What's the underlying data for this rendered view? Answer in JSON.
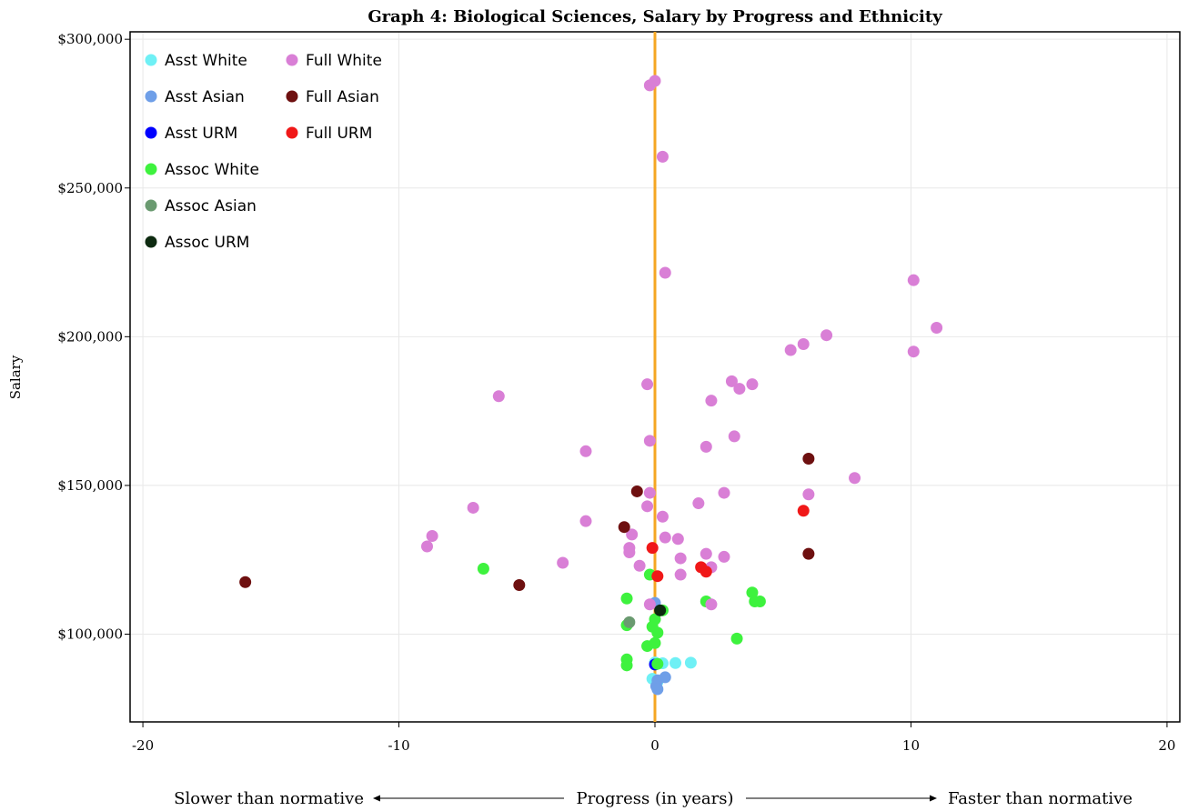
{
  "chart_data": {
    "type": "scatter",
    "title": "Graph 4: Biological Sciences, Salary by Progress and Ethnicity",
    "xlabel": "Progress (in years)",
    "ylabel": "Salary",
    "x_annotation_left": "Slower than normative",
    "x_annotation_right": "Faster than normative",
    "xlim": [
      -20.5,
      20.5
    ],
    "ylim": [
      70500,
      302500
    ],
    "x_ticks": [
      -20,
      -10,
      0,
      10,
      20
    ],
    "x_tick_labels": [
      "-20",
      "-10",
      "0",
      "10",
      "20"
    ],
    "y_ticks": [
      100000,
      150000,
      200000,
      250000,
      300000
    ],
    "y_tick_labels": [
      "$100,000",
      "$150,000",
      "$200,000",
      "$250,000",
      "$300,000"
    ],
    "grid": true,
    "reference_line_x": 0,
    "reference_line_color": "#f5a623",
    "legend_position": "top-left",
    "series": [
      {
        "name": "Asst White",
        "color": "#6ff0f5",
        "points": [
          [
            0.0,
            90500
          ],
          [
            0.3,
            90200
          ],
          [
            0.8,
            90300
          ],
          [
            1.4,
            90400
          ],
          [
            -0.1,
            85000
          ],
          [
            0.1,
            84000
          ]
        ]
      },
      {
        "name": "Asst Asian",
        "color": "#6f9fe8",
        "points": [
          [
            0.0,
            110500
          ],
          [
            0.4,
            85500
          ],
          [
            0.1,
            84500
          ],
          [
            0.05,
            82500
          ],
          [
            0.1,
            81500
          ]
        ]
      },
      {
        "name": "Asst URM",
        "color": "#0000ff",
        "points": [
          [
            0.0,
            89800
          ]
        ]
      },
      {
        "name": "Assoc White",
        "color": "#3ef23e",
        "points": [
          [
            -6.7,
            122000
          ],
          [
            -0.2,
            120000
          ],
          [
            -1.1,
            112000
          ],
          [
            2.0,
            111000
          ],
          [
            3.8,
            114000
          ],
          [
            3.9,
            111000
          ],
          [
            4.1,
            111000
          ],
          [
            -1.1,
            103000
          ],
          [
            -0.1,
            102500
          ],
          [
            0.0,
            105000
          ],
          [
            0.1,
            100500
          ],
          [
            0.3,
            108000
          ],
          [
            -0.3,
            96000
          ],
          [
            0.0,
            97000
          ],
          [
            3.2,
            98500
          ],
          [
            -1.1,
            91500
          ],
          [
            -1.1,
            89500
          ],
          [
            0.1,
            90000
          ]
        ]
      },
      {
        "name": "Assoc Asian",
        "color": "#6a9a70",
        "points": [
          [
            -1.0,
            104000
          ]
        ]
      },
      {
        "name": "Assoc URM",
        "color": "#0d2a10",
        "points": [
          [
            0.2,
            108000
          ]
        ]
      },
      {
        "name": "Full White",
        "color": "#d97fd6",
        "points": [
          [
            -0.2,
            284500
          ],
          [
            0.0,
            286000
          ],
          [
            0.3,
            260500
          ],
          [
            0.4,
            221500
          ],
          [
            10.1,
            219000
          ],
          [
            11.0,
            203000
          ],
          [
            10.1,
            195000
          ],
          [
            6.7,
            200500
          ],
          [
            5.8,
            197500
          ],
          [
            5.3,
            195500
          ],
          [
            3.0,
            185000
          ],
          [
            3.3,
            182500
          ],
          [
            3.8,
            184000
          ],
          [
            -0.3,
            184000
          ],
          [
            2.2,
            178500
          ],
          [
            -6.1,
            180000
          ],
          [
            -0.2,
            165000
          ],
          [
            3.1,
            166500
          ],
          [
            2.0,
            163000
          ],
          [
            -2.7,
            161500
          ],
          [
            7.8,
            152500
          ],
          [
            6.0,
            147000
          ],
          [
            2.7,
            147500
          ],
          [
            -0.2,
            147500
          ],
          [
            -0.3,
            143000
          ],
          [
            1.7,
            144000
          ],
          [
            -7.1,
            142500
          ],
          [
            0.3,
            139500
          ],
          [
            -2.7,
            138000
          ],
          [
            -8.7,
            133000
          ],
          [
            -8.9,
            129500
          ],
          [
            -0.9,
            133500
          ],
          [
            0.4,
            132500
          ],
          [
            0.9,
            132000
          ],
          [
            -1.0,
            129000
          ],
          [
            -1.0,
            127500
          ],
          [
            2.0,
            127000
          ],
          [
            2.7,
            126000
          ],
          [
            1.0,
            125500
          ],
          [
            -3.6,
            124000
          ],
          [
            -0.6,
            123000
          ],
          [
            2.2,
            122500
          ],
          [
            1.0,
            120000
          ],
          [
            -0.2,
            110000
          ],
          [
            2.2,
            110000
          ]
        ]
      },
      {
        "name": "Full Asian",
        "color": "#6e1010",
        "points": [
          [
            -16.0,
            117500
          ],
          [
            -5.3,
            116500
          ],
          [
            -0.7,
            148000
          ],
          [
            -1.2,
            136000
          ],
          [
            6.0,
            159000
          ],
          [
            6.0,
            127000
          ]
        ]
      },
      {
        "name": "Full URM",
        "color": "#f01818",
        "points": [
          [
            -0.1,
            129000
          ],
          [
            0.1,
            119500
          ],
          [
            1.8,
            122500
          ],
          [
            2.0,
            121000
          ],
          [
            5.8,
            141500
          ]
        ]
      }
    ]
  }
}
